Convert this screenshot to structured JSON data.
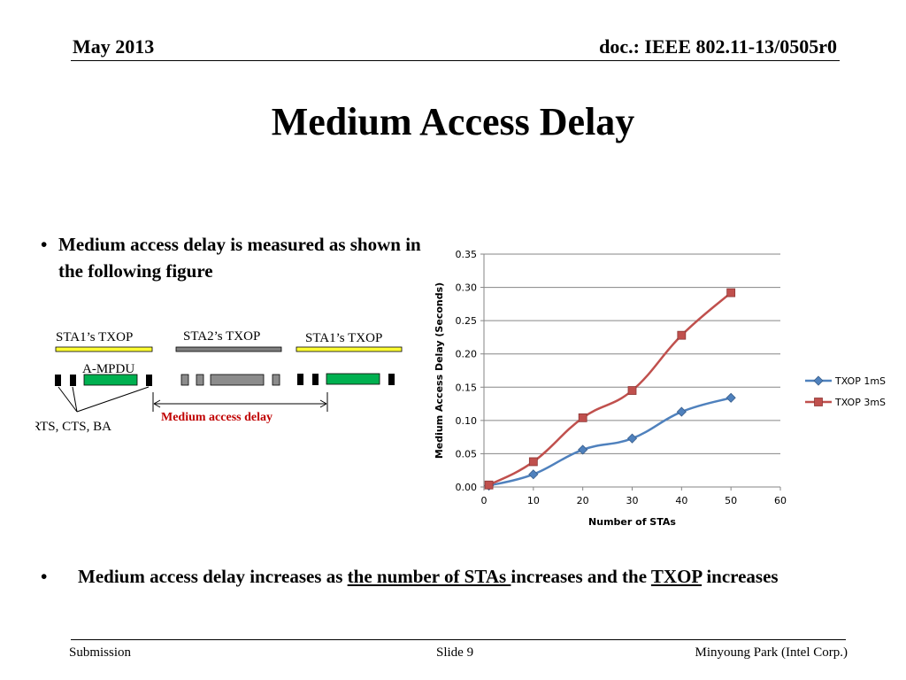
{
  "header": {
    "date": "May 2013",
    "doc": "doc.: IEEE 802.11-13/0505r0"
  },
  "title": "Medium Access Delay",
  "bullet1": {
    "marker": "•",
    "text": "Medium access delay is measured as shown in the following figure"
  },
  "bullet2": {
    "marker": "•",
    "part1": "Medium access delay increases as ",
    "part2": "the number of STAs ",
    "part3": "increases and the ",
    "part4": "TXOP",
    "part5": " increases"
  },
  "figure": {
    "sta1_txop_left": "STA1’s TXOP",
    "sta2_txop": "STA2’s TXOP",
    "sta1_txop_right": "STA1’s TXOP",
    "ampdu": "A-MPDU",
    "rts_cts_ba": "RTS, CTS, BA",
    "medium_access_delay": "Medium access delay",
    "colors": {
      "txop_bar_sta1": "#ffff33",
      "txop_bar_sta2": "#7f7f7f",
      "ampdu": "#00b050",
      "delay_label": "#c00000"
    }
  },
  "chart_data": {
    "type": "line",
    "ylabel": "Medium Access Delay (Seconds)",
    "xlabel": "Number of STAs",
    "xlim": [
      0,
      60
    ],
    "ylim": [
      0,
      0.35
    ],
    "xticks": [
      "0",
      "10",
      "20",
      "30",
      "40",
      "50",
      "60"
    ],
    "yticks": [
      "0.00",
      "0.05",
      "0.10",
      "0.15",
      "0.20",
      "0.25",
      "0.30",
      "0.35"
    ],
    "grid": true,
    "legend_position": "right",
    "series": [
      {
        "name": "TXOP 1mS",
        "color": "#4f81bd",
        "marker": "diamond",
        "x": [
          1,
          10,
          20,
          30,
          40,
          50
        ],
        "y": [
          0.002,
          0.019,
          0.056,
          0.073,
          0.113,
          0.134
        ]
      },
      {
        "name": "TXOP 3mS",
        "color": "#c0504d",
        "marker": "square",
        "x": [
          1,
          10,
          20,
          30,
          40,
          50
        ],
        "y": [
          0.003,
          0.038,
          0.104,
          0.145,
          0.228,
          0.292
        ]
      }
    ]
  },
  "footer": {
    "left": "Submission",
    "mid": "Slide 9",
    "right": "Minyoung Park (Intel Corp.)"
  }
}
